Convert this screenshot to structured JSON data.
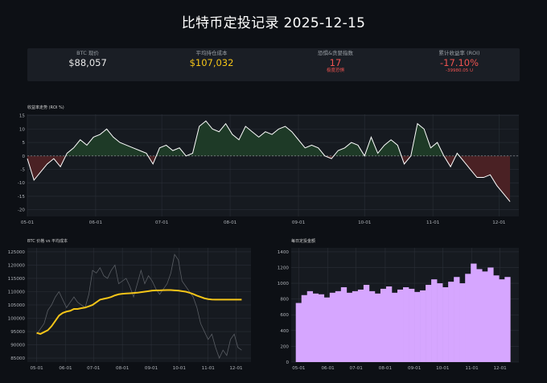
{
  "title": "比特币定投记录 2025-12-15",
  "kpis": [
    {
      "label": "BTC 现价",
      "value": "$88,057",
      "sub": "",
      "color": "#e8e8e8"
    },
    {
      "label": "平均持仓成本",
      "value": "$107,032",
      "sub": "",
      "color": "#f5c518"
    },
    {
      "label": "恐惧&贪婪指数",
      "value": "17",
      "sub": "极度恐惧",
      "color": "#ef5350"
    },
    {
      "label": "累计收益率 (ROI)",
      "value": "-17.10%",
      "sub": "-39980.05 U",
      "color": "#ef5350"
    }
  ],
  "chart_data": [
    {
      "type": "area",
      "title": "收益率走势 (ROI %)",
      "x_tick_labels": [
        "05-01",
        "06-01",
        "07-01",
        "08-01",
        "09-01",
        "10-01",
        "11-01",
        "12-01"
      ],
      "y_ticks": [
        15,
        10,
        5,
        0,
        -5,
        -10,
        -15,
        -20
      ],
      "ylim": [
        -22.5,
        15.5
      ],
      "xlim_days": [
        0,
        223
      ],
      "colors": {
        "line": "#ffffff",
        "positive": "#1e3a27",
        "negative": "#4a2124",
        "zero": "#9aa0a6"
      },
      "x_days": [
        0,
        3,
        6,
        9,
        12,
        15,
        18,
        21,
        24,
        27,
        30,
        33,
        36,
        39,
        42,
        45,
        48,
        51,
        54,
        57,
        60,
        63,
        66,
        69,
        72,
        75,
        78,
        81,
        84,
        87,
        90,
        93,
        96,
        99,
        102,
        105,
        108,
        111,
        114,
        117,
        120,
        123,
        126,
        129,
        132,
        135,
        138,
        141,
        144,
        147,
        150,
        153,
        156,
        159,
        162,
        165,
        168,
        171,
        174,
        177,
        180,
        183,
        186,
        189,
        192,
        195,
        198,
        201,
        204,
        207,
        210,
        213,
        216,
        219
      ],
      "values": [
        -1,
        -9,
        -6,
        -3,
        -1,
        -4,
        1,
        3,
        6,
        4,
        7,
        8,
        10,
        7,
        5,
        4,
        3,
        2,
        1,
        -3,
        3,
        4,
        2,
        3,
        0,
        1,
        11,
        13,
        10,
        9,
        12,
        8,
        6,
        11,
        9,
        7,
        9,
        8,
        10,
        11,
        9,
        6,
        3,
        4,
        3,
        0,
        -1,
        2,
        3,
        5,
        4,
        0,
        7,
        1,
        4,
        6,
        4,
        -3,
        0,
        12,
        10,
        3,
        5,
        0,
        -4,
        1,
        -2,
        -5,
        -8,
        -8,
        -7,
        -11,
        -14,
        -17
      ]
    },
    {
      "type": "line",
      "title": "BTC 价格 vs 平均成本",
      "x_tick_labels": [
        "05-01",
        "06-01",
        "07-01",
        "08-01",
        "09-01",
        "10-01",
        "11-01",
        "12-01"
      ],
      "y_ticks": [
        125000,
        120000,
        115000,
        110000,
        105000,
        100000,
        95000,
        90000,
        85000
      ],
      "ylim": [
        83500,
        126500
      ],
      "xlim_days": [
        -10,
        230
      ],
      "series": [
        {
          "name": "BTC 价格",
          "color": "#5a5e64",
          "x_days": [
            0,
            4,
            8,
            12,
            16,
            20,
            24,
            28,
            32,
            36,
            40,
            44,
            48,
            52,
            56,
            60,
            64,
            68,
            72,
            76,
            80,
            84,
            88,
            92,
            96,
            100,
            104,
            108,
            112,
            116,
            120,
            124,
            128,
            132,
            136,
            140,
            144,
            148,
            152,
            156,
            160,
            164,
            168,
            172,
            176,
            180,
            184,
            188,
            192,
            196,
            200,
            204,
            208,
            212,
            216,
            220
          ],
          "values": [
            94000,
            96000,
            98000,
            103000,
            105000,
            108000,
            110000,
            107000,
            104000,
            106000,
            108000,
            106000,
            105000,
            104000,
            109000,
            118000,
            117000,
            119000,
            116000,
            115000,
            118000,
            120000,
            113000,
            114000,
            115000,
            112000,
            108000,
            113000,
            118000,
            113000,
            116000,
            114000,
            111000,
            109000,
            111000,
            113000,
            117000,
            124000,
            122000,
            114000,
            112000,
            110000,
            108000,
            104000,
            98000,
            95000,
            92000,
            94000,
            89000,
            85000,
            88000,
            86000,
            92000,
            94000,
            89000,
            88000
          ]
        },
        {
          "name": "平均成本",
          "color": "#f5c518",
          "x_days": [
            0,
            4,
            8,
            12,
            16,
            20,
            24,
            28,
            32,
            36,
            40,
            44,
            48,
            52,
            56,
            60,
            64,
            68,
            72,
            76,
            80,
            84,
            88,
            92,
            96,
            100,
            104,
            108,
            112,
            116,
            120,
            124,
            128,
            132,
            136,
            140,
            144,
            148,
            152,
            156,
            160,
            164,
            168,
            172,
            176,
            180,
            184,
            188,
            192,
            196,
            200,
            204,
            208,
            212,
            216,
            220
          ],
          "values": [
            94500,
            94100,
            94800,
            95500,
            97000,
            99000,
            101000,
            102000,
            102500,
            102800,
            103500,
            103500,
            103800,
            104000,
            104500,
            105000,
            106000,
            107000,
            107300,
            107600,
            108000,
            108600,
            109000,
            109200,
            109300,
            109400,
            109500,
            109600,
            109800,
            110000,
            110200,
            110400,
            110500,
            110500,
            110550,
            110600,
            110600,
            110500,
            110400,
            110200,
            110000,
            109600,
            109100,
            108500,
            108000,
            107500,
            107200,
            107032,
            107000,
            107000,
            107000,
            107000,
            107000,
            107000,
            107000,
            107000
          ]
        }
      ]
    },
    {
      "type": "bar",
      "title": "每日定投金额",
      "x_tick_labels": [
        "05-01",
        "06-01",
        "07-01",
        "08-01",
        "09-01",
        "10-01",
        "11-01",
        "12-01"
      ],
      "y_ticks": [
        1400,
        1200,
        1000,
        800,
        600,
        400,
        200,
        0
      ],
      "ylim": [
        0,
        1450
      ],
      "xlim_days": [
        -8,
        234
      ],
      "color": "#d6a6ff",
      "x_days": [
        0,
        6,
        12,
        18,
        24,
        30,
        36,
        42,
        48,
        54,
        60,
        66,
        72,
        78,
        84,
        90,
        96,
        102,
        108,
        114,
        120,
        126,
        132,
        138,
        144,
        150,
        156,
        162,
        168,
        174,
        180,
        186,
        192,
        198,
        204,
        210,
        216,
        222
      ],
      "values": [
        750,
        850,
        900,
        870,
        860,
        820,
        880,
        900,
        950,
        880,
        900,
        920,
        980,
        900,
        870,
        930,
        960,
        880,
        920,
        950,
        930,
        890,
        910,
        980,
        1050,
        1000,
        950,
        1020,
        1080,
        1000,
        1120,
        1250,
        1180,
        1150,
        1200,
        1100,
        1050,
        1080
      ]
    }
  ]
}
